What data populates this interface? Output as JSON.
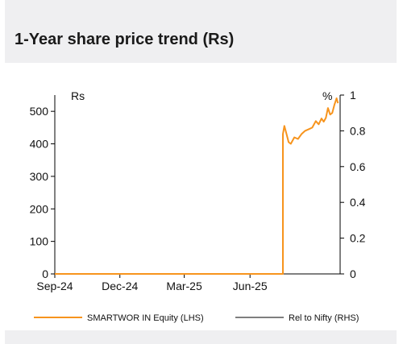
{
  "header": {
    "title": "1-Year share price trend (Rs)"
  },
  "chart_data": {
    "type": "line",
    "title": "1-Year share price trend (Rs)",
    "left_axis_label": "Rs",
    "right_axis_label": "%",
    "x_ticks": [
      "Sep-24",
      "Dec-24",
      "Mar-25",
      "Jun-25"
    ],
    "y_left_ticks": [
      "0",
      "100",
      "200",
      "300",
      "400",
      "500"
    ],
    "y_right_ticks": [
      "0",
      "0.2",
      "0.4",
      "0.6",
      "0.8",
      "1"
    ],
    "ylim_left": [
      0,
      550
    ],
    "ylim_right": [
      0,
      1.0
    ],
    "series": [
      {
        "name": "SMARTWOR IN Equity (LHS)",
        "color": "#f7941d",
        "axis": "left",
        "x": [
          "2024-09-01",
          "2025-07-17",
          "2025-07-17",
          "2025-07-19",
          "2025-07-22",
          "2025-07-25",
          "2025-07-28",
          "2025-08-02",
          "2025-08-07",
          "2025-08-12",
          "2025-08-17",
          "2025-08-22",
          "2025-08-27",
          "2025-09-01",
          "2025-09-05",
          "2025-09-09",
          "2025-09-12",
          "2025-09-15",
          "2025-09-18",
          "2025-09-21",
          "2025-09-24",
          "2025-09-27",
          "2025-09-30",
          "2025-10-02"
        ],
        "values": [
          0,
          0,
          430,
          455,
          430,
          405,
          400,
          420,
          415,
          430,
          440,
          445,
          450,
          470,
          460,
          478,
          468,
          480,
          510,
          490,
          495,
          520,
          540,
          525
        ]
      },
      {
        "name": "Rel to Nifty (RHS)",
        "color": "#7f7f7f",
        "axis": "right",
        "x": [],
        "values": []
      }
    ],
    "legend": "bottom"
  }
}
